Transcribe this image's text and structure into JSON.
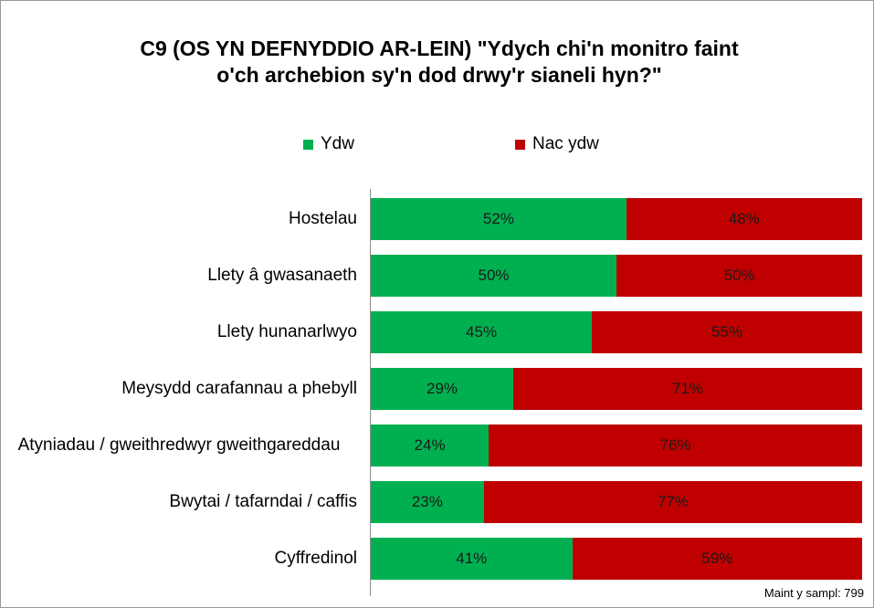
{
  "chart_data": {
    "type": "stacked-barh",
    "title": "C9 (OS YN DEFNYDDIO AR-LEIN) \"Ydych chi'n monitro faint o'ch archebion sy'n dod drwy'r sianeli hyn?\"",
    "categories": [
      "Hostelau",
      "Llety â gwasanaeth",
      "Llety hunanarlwyo",
      "Meysydd carafannau a phebyll",
      "Atyniadau / gweithredwyr gweithgareddau",
      "Bwytai / tafarndai / caffis",
      "Cyffredinol"
    ],
    "series": [
      {
        "name": "Ydw",
        "color": "#00b050",
        "values": [
          52,
          50,
          45,
          29,
          24,
          23,
          41
        ],
        "value_labels": [
          "52%",
          "50%",
          "45%",
          "29%",
          "24%",
          "23%",
          "41%"
        ]
      },
      {
        "name": "Nac ydw",
        "color": "#c00000",
        "values": [
          48,
          50,
          55,
          71,
          76,
          77,
          59
        ],
        "value_labels": [
          "48%",
          "50%",
          "55%",
          "71%",
          "76%",
          "77%",
          "59%"
        ]
      }
    ],
    "xlim": [
      0,
      100
    ],
    "legend": "top",
    "note": "Maint y sampl: 799"
  }
}
